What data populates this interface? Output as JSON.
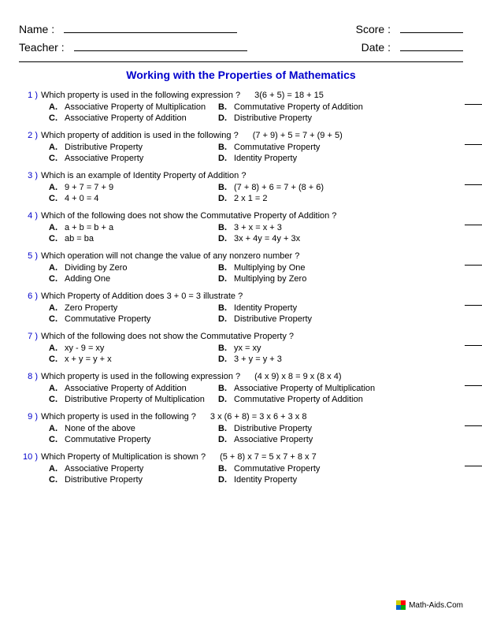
{
  "header": {
    "name_label": "Name :",
    "teacher_label": "Teacher :",
    "score_label": "Score :",
    "date_label": "Date :"
  },
  "title": "Working with the Properties of Mathematics",
  "title_color": "#0000cc",
  "qnum_color": "#0000cc",
  "questions": [
    {
      "num": "1 )",
      "text": "Which property is used in the following expression ?",
      "expr": "3(6 + 5) = 18 + 15",
      "opts": {
        "A": "Associative Property of Multiplication",
        "B": "Commutative Property of Addition",
        "C": "Associative Property of Addition",
        "D": "Distributive Property"
      }
    },
    {
      "num": "2 )",
      "text": "Which property of addition is used in the following ?",
      "expr": "(7 + 9) + 5 = 7 +  (9 + 5)",
      "opts": {
        "A": "Distributive Property",
        "B": "Commutative Property",
        "C": "Associative Property",
        "D": "Identity Property"
      }
    },
    {
      "num": "3 )",
      "text": "Which is an example of Identity Property of Addition ?",
      "expr": "",
      "opts": {
        "A": "9 + 7 = 7 + 9",
        "B": "(7 + 8) + 6 = 7 +  (8 + 6)",
        "C": "4 + 0 = 4",
        "D": "2 x 1 = 2"
      }
    },
    {
      "num": "4 )",
      "text": "Which of the following does not show the Commutative Property of Addition ?",
      "expr": "",
      "opts": {
        "A": "a + b = b + a",
        "B": "3 + x = x + 3",
        "C": "ab = ba",
        "D": "3x + 4y = 4y + 3x"
      }
    },
    {
      "num": "5 )",
      "text": "Which operation will not change the value of any nonzero number ?",
      "expr": "",
      "opts": {
        "A": "Dividing by Zero",
        "B": "Multiplying by One",
        "C": "Adding One",
        "D": "Multiplying by Zero"
      }
    },
    {
      "num": "6 )",
      "text": "Which Property of Addition does 3 + 0 = 3 illustrate ?",
      "expr": "",
      "opts": {
        "A": "Zero Property",
        "B": "Identity Property",
        "C": "Commutative Property",
        "D": "Distributive Property"
      }
    },
    {
      "num": "7 )",
      "text": "Which of the following does not show the Commutative Property ?",
      "expr": "",
      "opts": {
        "A": "xy - 9 = xy",
        "B": "yx = xy",
        "C": "x + y = y + x",
        "D": "3 + y = y + 3"
      }
    },
    {
      "num": "8 )",
      "text": "Which property is used in the following expression ?",
      "expr": "(4 x 9) x 8 = 9 x  (8 x 4)",
      "opts": {
        "A": "Associative Property of Addition",
        "B": "Associative Property of Multiplication",
        "C": "Distributive Property of Multiplication",
        "D": "Commutative Property of Addition"
      }
    },
    {
      "num": "9 )",
      "text": "Which property is used in the following ?",
      "expr": "3 x (6 + 8) = 3 x 6 + 3 x 8",
      "opts": {
        "A": "None of the above",
        "B": "Distributive Property",
        "C": "Commutative Property",
        "D": "Associative Property"
      }
    },
    {
      "num": "10 )",
      "text": "Which Property of Multiplication is shown ?",
      "expr": "(5 + 8) x 7 = 5 x 7 + 8 x 7",
      "opts": {
        "A": "Associative Property",
        "B": "Commutative Property",
        "C": "Distributive Property",
        "D": "Identity Property"
      }
    }
  ],
  "footer": "Math-Aids.Com"
}
